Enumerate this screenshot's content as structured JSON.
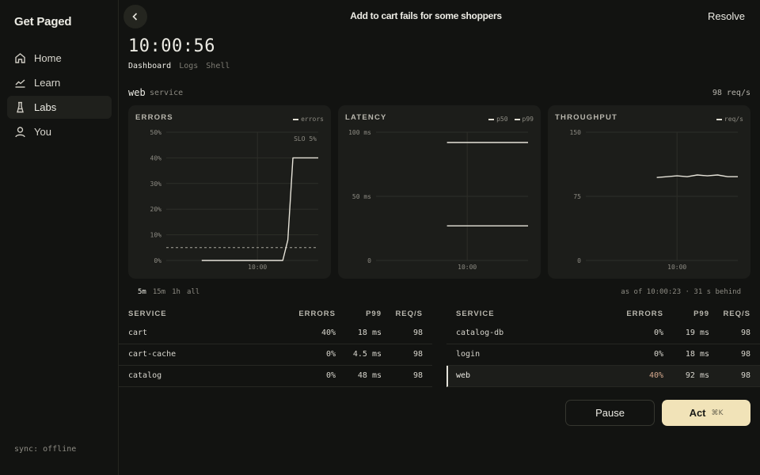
{
  "sidebar": {
    "brand": "Get Paged",
    "items": [
      {
        "label": "Home",
        "icon": "home-icon"
      },
      {
        "label": "Learn",
        "icon": "chart-line-icon"
      },
      {
        "label": "Labs",
        "icon": "flask-icon"
      },
      {
        "label": "You",
        "icon": "user-icon"
      }
    ],
    "active": "Labs",
    "sync": "sync: offline"
  },
  "header": {
    "title": "Add to cart fails for some shoppers",
    "resolve_label": "Resolve"
  },
  "clock": "10:00:56",
  "tabs": [
    "Dashboard",
    "Logs",
    "Shell"
  ],
  "active_tab": "Dashboard",
  "service": {
    "name": "web",
    "sub": "service",
    "rate": "98 req/s"
  },
  "chart_data": [
    {
      "type": "line",
      "title": "ERRORS",
      "ylim": [
        0,
        50
      ],
      "yticks": [
        "50%",
        "40%",
        "30%",
        "20%",
        "10%",
        "0%"
      ],
      "xticks": [
        "10:00"
      ],
      "annotation": "SLO 5%",
      "slo": 5,
      "series": [
        {
          "name": "errors",
          "x": [
            "09:58:10",
            "09:59:50",
            "10:00:50",
            "10:01:00",
            "10:01:10",
            "10:02:00"
          ],
          "values": [
            0,
            0,
            0,
            8,
            40,
            40
          ]
        }
      ]
    },
    {
      "type": "line",
      "title": "LATENCY",
      "ylim": [
        0,
        100
      ],
      "yticks": [
        "100 ms",
        "50 ms",
        "0"
      ],
      "xticks": [
        "10:00"
      ],
      "series": [
        {
          "name": "p50",
          "x": [
            "09:59:20",
            "10:02:00"
          ],
          "values": [
            27,
            27
          ]
        },
        {
          "name": "p99",
          "x": [
            "09:59:20",
            "10:02:00"
          ],
          "values": [
            92,
            92
          ]
        }
      ]
    },
    {
      "type": "line",
      "title": "THROUGHPUT",
      "ylim": [
        0,
        150
      ],
      "yticks": [
        "150",
        "75",
        "0"
      ],
      "xticks": [
        "10:00"
      ],
      "series": [
        {
          "name": "req/s",
          "x": [
            "09:59:20",
            "09:59:40",
            "10:00:00",
            "10:00:20",
            "10:00:40",
            "10:01:00",
            "10:01:20",
            "10:01:40",
            "10:02:00"
          ],
          "values": [
            97,
            98,
            99,
            98,
            100,
            99,
            100,
            98,
            98
          ]
        }
      ]
    }
  ],
  "ranges": [
    "5m",
    "15m",
    "1h",
    "all"
  ],
  "active_range": "5m",
  "asof": "as of 10:00:23 · 31 s behind",
  "table": {
    "headers": [
      "SERVICE",
      "ERRORS",
      "P99",
      "REQ/S"
    ],
    "left_rows": [
      {
        "service": "cart",
        "errors": "40%",
        "p99": "18 ms",
        "reqs": "98"
      },
      {
        "service": "cart-cache",
        "errors": "0%",
        "p99": "4.5 ms",
        "reqs": "98"
      },
      {
        "service": "catalog",
        "errors": "0%",
        "p99": "48 ms",
        "reqs": "98"
      }
    ],
    "right_rows": [
      {
        "service": "catalog-db",
        "errors": "0%",
        "p99": "19 ms",
        "reqs": "98"
      },
      {
        "service": "login",
        "errors": "0%",
        "p99": "18 ms",
        "reqs": "98"
      },
      {
        "service": "web",
        "errors": "40%",
        "p99": "92 ms",
        "reqs": "98"
      }
    ],
    "selected": "web"
  },
  "actions": {
    "pause_label": "Pause",
    "act_label": "Act",
    "act_shortcut": "⌘K"
  },
  "colors": {
    "accent": "#f1e3b8",
    "background": "#121311",
    "card": "#1c1d1a",
    "error_hot": "#d6a98e"
  }
}
